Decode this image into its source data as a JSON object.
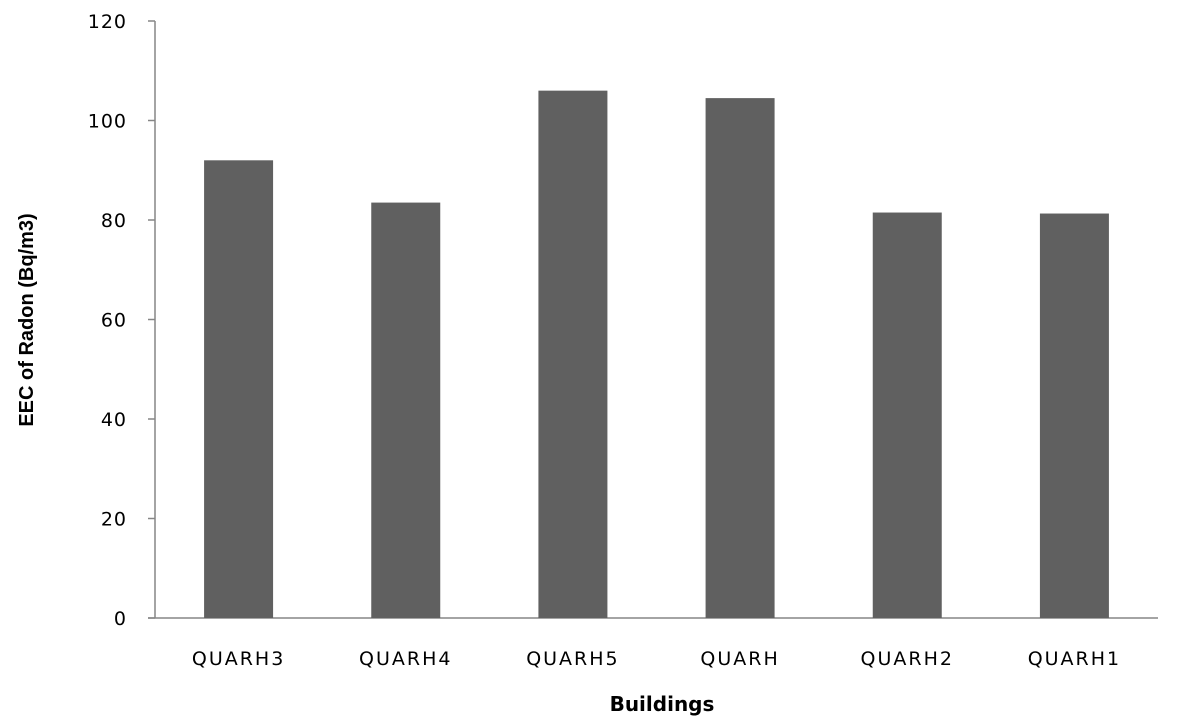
{
  "chart_data": {
    "type": "bar",
    "categories": [
      "QUARH3",
      "QUARH4",
      "QUARH5",
      "QUARH",
      "QUARH2",
      "QUARH1"
    ],
    "values": [
      92,
      83.5,
      106,
      104.5,
      81.5,
      81.3
    ],
    "xlabel": "Buildings",
    "ylabel": "EEC of Radon (Bq/m3)",
    "ylim": [
      0,
      120
    ],
    "yticks": [
      0,
      20,
      40,
      60,
      80,
      100,
      120
    ],
    "grid": false,
    "legend": "none",
    "bar_color": "#606060"
  }
}
